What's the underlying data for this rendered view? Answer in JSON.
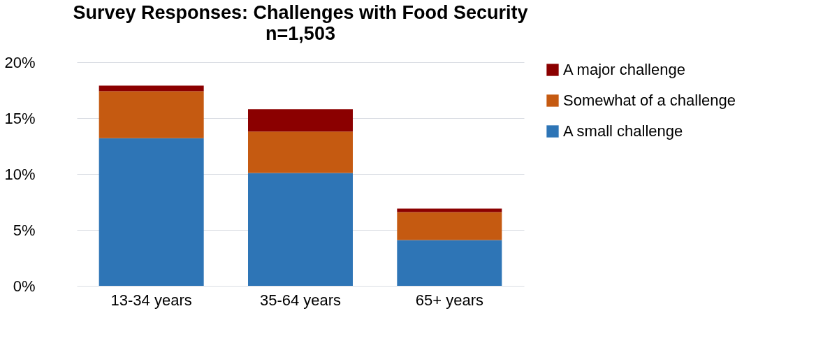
{
  "chart_data": {
    "type": "bar",
    "title": "Survey Responses: Challenges with Food Security",
    "subtitle": "n=1,503",
    "categories": [
      "13-34 years",
      "35-64 years",
      "65+ years"
    ],
    "series": [
      {
        "name": "A small challenge",
        "color": "#2e75b6",
        "values": [
          13.2,
          10.1,
          4.1
        ]
      },
      {
        "name": "Somewhat of a challenge",
        "color": "#c55a11",
        "values": [
          4.2,
          3.7,
          2.5
        ]
      },
      {
        "name": "A major challenge",
        "color": "#8b0000",
        "values": [
          0.5,
          2.0,
          0.3
        ]
      }
    ],
    "stacked": true,
    "ylim": [
      0,
      20
    ],
    "yticks": [
      {
        "value": 0,
        "label": "0%"
      },
      {
        "value": 5,
        "label": "5%"
      },
      {
        "value": 10,
        "label": "10%"
      },
      {
        "value": 15,
        "label": "15%"
      },
      {
        "value": 20,
        "label": "20%"
      }
    ],
    "grid": "y",
    "legend": "right"
  }
}
